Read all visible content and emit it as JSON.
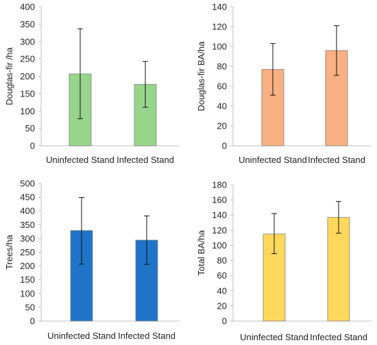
{
  "chart_data": [
    {
      "type": "bar",
      "categories": [
        "Uninfected Stand",
        "Infected Stand"
      ],
      "ylabel": "Douglas-fir /ha",
      "ylim": [
        0,
        400
      ],
      "yticks": [
        0,
        50,
        100,
        150,
        200,
        250,
        300,
        350,
        400
      ],
      "values": [
        207,
        177
      ],
      "error_low": [
        78,
        111
      ],
      "error_high": [
        337,
        243
      ],
      "color": "#97d58b"
    },
    {
      "type": "bar",
      "categories": [
        "Uninfected Stand",
        "Infected Stand"
      ],
      "ylabel": "Douglas-fir BA/ha",
      "ylim": [
        0,
        140
      ],
      "yticks": [
        0,
        20,
        40,
        60,
        80,
        100,
        120,
        140
      ],
      "values": [
        77,
        96
      ],
      "error_low": [
        51,
        71
      ],
      "error_high": [
        103,
        121
      ],
      "color": "#f9b082"
    },
    {
      "type": "bar",
      "categories": [
        "Uninfected Stand",
        "Infected Stand"
      ],
      "ylabel": "Trees/ha",
      "ylim": [
        0,
        500
      ],
      "yticks": [
        0,
        50,
        100,
        150,
        200,
        250,
        300,
        350,
        400,
        450,
        500
      ],
      "values": [
        329,
        294
      ],
      "error_low": [
        207,
        206
      ],
      "error_high": [
        449,
        382
      ],
      "color": "#1f74c8"
    },
    {
      "type": "bar",
      "categories": [
        "Uninfected Stand",
        "Infected Stand"
      ],
      "ylabel": "Total BA/ha",
      "ylim": [
        0,
        180
      ],
      "yticks": [
        0,
        20,
        40,
        60,
        80,
        100,
        120,
        140,
        160,
        180
      ],
      "values": [
        115,
        137
      ],
      "error_low": [
        89,
        116
      ],
      "error_high": [
        142,
        158
      ],
      "color": "#fdd85d"
    }
  ]
}
